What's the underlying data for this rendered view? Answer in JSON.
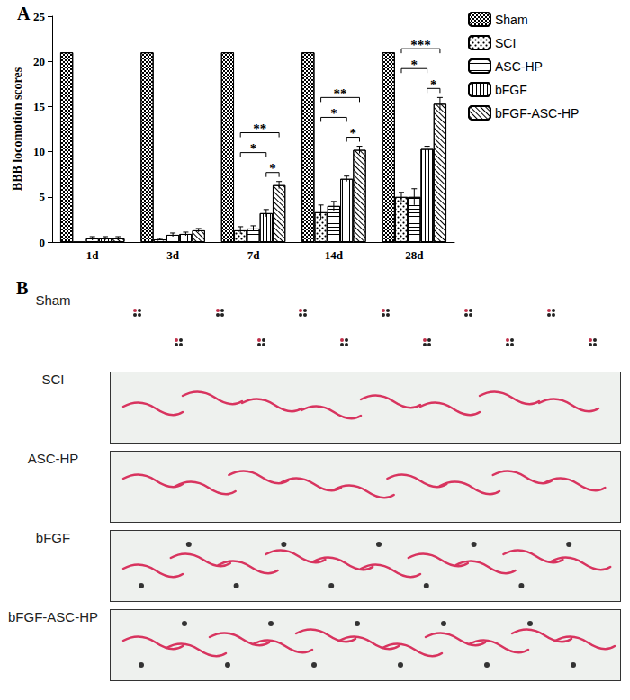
{
  "chart_data": {
    "type": "bar",
    "title": "A",
    "y_label": "BBB locomotion scores",
    "categories": [
      "1d",
      "3d",
      "7d",
      "14d",
      "28d"
    ],
    "ylim": [
      0,
      25
    ],
    "yticks": [
      0,
      5,
      10,
      15,
      20,
      25
    ],
    "grid": false,
    "legend": "right",
    "series": [
      {
        "name": "Sham",
        "color": "#ffffff",
        "values": [
          21,
          21,
          21,
          21,
          21
        ],
        "errors": [
          0,
          0,
          0,
          0,
          0
        ]
      },
      {
        "name": "SCI",
        "color": "#ffffff",
        "values": [
          0,
          0.3,
          1.3,
          3.3,
          5.0
        ],
        "errors": [
          0,
          0.1,
          0.4,
          0.8,
          0.5
        ]
      },
      {
        "name": "ASC-HP",
        "color": "#ffffff",
        "values": [
          0.4,
          0.8,
          1.5,
          4.0,
          5.0
        ],
        "errors": [
          0.2,
          0.2,
          0.3,
          0.5,
          0.9
        ]
      },
      {
        "name": "bFGF",
        "color": "#ffffff",
        "values": [
          0.4,
          0.9,
          3.2,
          7.0,
          10.3
        ],
        "errors": [
          0.2,
          0.2,
          0.4,
          0.3,
          0.3
        ]
      },
      {
        "name": "bFGF-ASC-HP",
        "color": "#ffffff",
        "values": [
          0.4,
          1.3,
          6.3,
          10.2,
          15.3
        ],
        "errors": [
          0.2,
          0.2,
          0.4,
          0.4,
          0.7
        ]
      }
    ],
    "significance": [
      {
        "category": "7d",
        "from": "SCI",
        "to": "bFGF",
        "label": "*"
      },
      {
        "category": "7d",
        "from": "bFGF",
        "to": "bFGF-ASC-HP",
        "label": "*"
      },
      {
        "category": "7d",
        "from": "SCI",
        "to": "bFGF-ASC-HP",
        "label": "**"
      },
      {
        "category": "14d",
        "from": "SCI",
        "to": "bFGF",
        "label": "*"
      },
      {
        "category": "14d",
        "from": "bFGF",
        "to": "bFGF-ASC-HP",
        "label": "*"
      },
      {
        "category": "14d",
        "from": "SCI",
        "to": "bFGF-ASC-HP",
        "label": "**"
      },
      {
        "category": "28d",
        "from": "SCI",
        "to": "bFGF",
        "label": "*"
      },
      {
        "category": "28d",
        "from": "bFGF",
        "to": "bFGF-ASC-HP",
        "label": "*"
      },
      {
        "category": "28d",
        "from": "SCI",
        "to": "bFGF-ASC-HP",
        "label": "***"
      }
    ]
  },
  "panel_b": {
    "label": "B",
    "rows": [
      "Sham",
      "SCI",
      "ASC-HP",
      "bFGF",
      "bFGF-ASC-HP"
    ]
  }
}
